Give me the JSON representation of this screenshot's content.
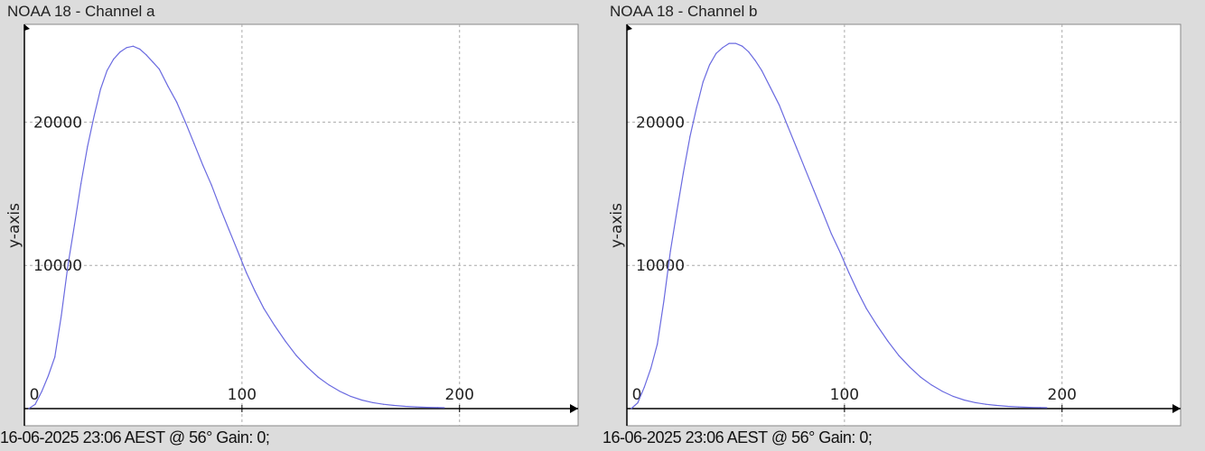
{
  "chart_data": [
    {
      "type": "line",
      "title": "NOAA 18 - Channel a",
      "ylabel": "y-axis",
      "xlabel": "",
      "xlim": [
        0,
        252
      ],
      "ylim": [
        0,
        26700
      ],
      "xticks": [
        "0",
        "100",
        "200"
      ],
      "yticks": [
        "10000",
        "20000"
      ],
      "grid": true,
      "line_color": "#6a6ae0",
      "x": [
        2,
        5,
        8,
        11,
        14,
        17,
        20,
        23,
        26,
        29,
        32,
        35,
        38,
        41,
        44,
        47,
        50,
        53,
        56,
        59,
        62,
        66,
        70,
        74,
        78,
        82,
        86,
        90,
        94,
        98,
        102,
        106,
        110,
        115,
        120,
        125,
        130,
        135,
        140,
        145,
        150,
        155,
        160,
        165,
        170,
        175,
        180,
        185,
        190,
        193
      ],
      "y": [
        0,
        300,
        1200,
        2300,
        3600,
        6500,
        10000,
        12800,
        15700,
        18300,
        20400,
        22300,
        23600,
        24400,
        24900,
        25200,
        25300,
        25100,
        24700,
        24200,
        23700,
        22500,
        21400,
        20000,
        18500,
        17000,
        15600,
        14000,
        12500,
        11000,
        9500,
        8200,
        7000,
        5800,
        4700,
        3700,
        2900,
        2200,
        1650,
        1200,
        850,
        600,
        420,
        300,
        220,
        160,
        120,
        90,
        70,
        60
      ],
      "footer": "16-06-2025 23:06 AEST @ 56° Gain: 0;"
    },
    {
      "type": "line",
      "title": "NOAA 18 - Channel b",
      "ylabel": "y-axis",
      "xlabel": "",
      "xlim": [
        0,
        252
      ],
      "ylim": [
        0,
        26700
      ],
      "xticks": [
        "0",
        "100",
        "200"
      ],
      "yticks": [
        "10000",
        "20000"
      ],
      "grid": true,
      "line_color": "#6a6ae0",
      "x": [
        2,
        5,
        8,
        11,
        14,
        17,
        20,
        23,
        26,
        29,
        32,
        35,
        38,
        41,
        44,
        47,
        50,
        53,
        56,
        59,
        62,
        66,
        70,
        74,
        78,
        82,
        86,
        90,
        94,
        98,
        102,
        106,
        110,
        115,
        120,
        125,
        130,
        135,
        140,
        145,
        150,
        155,
        160,
        165,
        170,
        175,
        180,
        185,
        190,
        193
      ],
      "y": [
        0,
        400,
        1500,
        2800,
        4500,
        7500,
        11000,
        13800,
        16500,
        19000,
        21000,
        22800,
        24000,
        24800,
        25200,
        25500,
        25500,
        25300,
        24900,
        24300,
        23600,
        22400,
        21200,
        19700,
        18200,
        16700,
        15200,
        13700,
        12200,
        10900,
        9500,
        8200,
        7000,
        5800,
        4700,
        3700,
        2900,
        2200,
        1650,
        1200,
        850,
        600,
        420,
        300,
        220,
        160,
        120,
        90,
        70,
        60
      ],
      "footer": "16-06-2025 23:06 AEST @ 56° Gain: 0;"
    }
  ]
}
